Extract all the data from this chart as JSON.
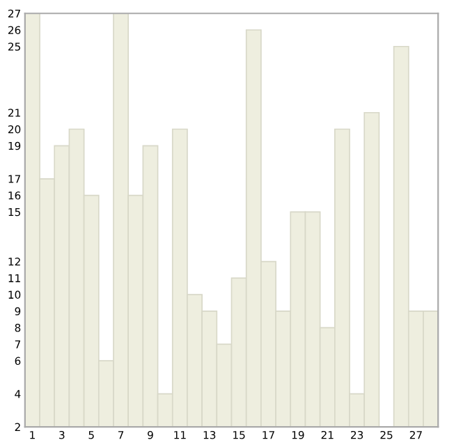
{
  "chart_data": {
    "type": "bar",
    "categories": [
      "1",
      null,
      "3",
      null,
      "5",
      null,
      "7",
      null,
      "9",
      null,
      "11",
      null,
      "13",
      null,
      "15",
      null,
      "17",
      null,
      "19",
      null,
      "21",
      null,
      "23",
      null,
      "25",
      null,
      "27",
      null
    ],
    "values": [
      27,
      17,
      19,
      20,
      16,
      6,
      27,
      16,
      19,
      4,
      20,
      10,
      9,
      7,
      11,
      26,
      12,
      9,
      15,
      15,
      8,
      20,
      4,
      21,
      2,
      25,
      9,
      9
    ],
    "color": "#eeeedf",
    "ylim": [
      2,
      27
    ],
    "yticks": [
      2,
      4,
      6,
      7,
      8,
      9,
      10,
      11,
      12,
      15,
      16,
      17,
      19,
      20,
      21,
      25,
      26,
      27
    ],
    "grid": false
  }
}
